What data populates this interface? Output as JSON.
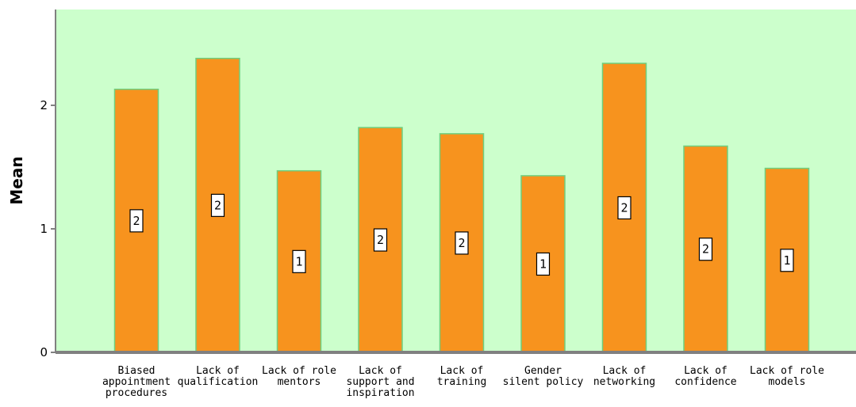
{
  "chart_data": {
    "type": "bar",
    "ylabel": "Mean",
    "xlabel": "",
    "ylim": [
      0,
      2.5
    ],
    "yticks": [
      0,
      1,
      2
    ],
    "categories": [
      [
        "Biased",
        "appointment",
        "procedures"
      ],
      [
        "Lack of",
        "qualification"
      ],
      [
        "Lack of role",
        "mentors"
      ],
      [
        "Lack of",
        "support and",
        "inspiration"
      ],
      [
        "Lack of",
        "training"
      ],
      [
        "Gender",
        "silent policy"
      ],
      [
        "Lack of",
        "networking"
      ],
      [
        "Lack of",
        "confidence"
      ],
      [
        "Lack of role",
        "models"
      ]
    ],
    "values": [
      2.13,
      2.38,
      1.47,
      1.82,
      1.77,
      1.43,
      2.34,
      1.67,
      1.49
    ],
    "data_labels": [
      "2",
      "2",
      "1",
      "2",
      "2",
      "1",
      "2",
      "2",
      "1"
    ],
    "colors": {
      "plot_background": "#ccffcc",
      "bar_fill": "#f7931e",
      "bar_stroke": "#6fcf7f",
      "axis": "#808080"
    },
    "grid": false,
    "legend": "none"
  }
}
